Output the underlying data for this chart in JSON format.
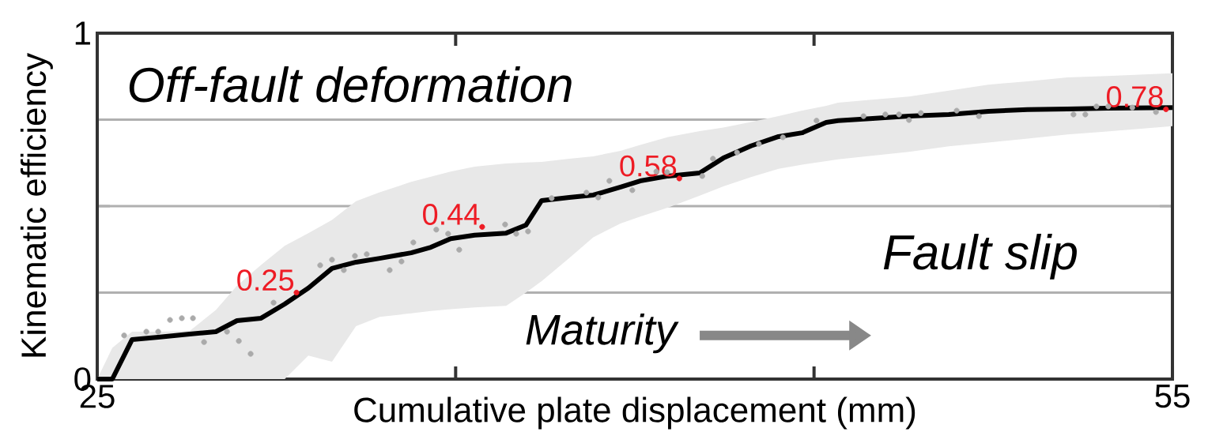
{
  "chart_data": {
    "type": "line",
    "xlabel": "Cumulative plate displacement (mm)",
    "ylabel": "Kinematic efficiency",
    "xlim": [
      25,
      55
    ],
    "ylim": [
      0,
      1
    ],
    "xticks": [
      25,
      {
        "value": 35,
        "label": null
      },
      {
        "value": 45,
        "label": null
      },
      55
    ],
    "yticks": [
      0,
      {
        "value": 0.25,
        "label": null
      },
      {
        "value": 0.5,
        "label": null
      },
      {
        "value": 0.75,
        "label": null
      },
      1
    ],
    "grid": "y",
    "annotations": [
      "Off-fault deformation",
      "Fault slip",
      "Maturity"
    ],
    "series": [
      {
        "type": "scatter",
        "color": "#aaaaaa",
        "marker": "circle",
        "x": [
          25.75,
          26.37,
          26.7,
          27.03,
          27.36,
          27.67,
          27.98,
          28.62,
          28.95,
          29.28,
          29.92,
          31.22,
          31.55,
          31.88,
          32.19,
          32.52,
          33.16,
          33.49,
          33.82,
          34.46,
          34.79,
          35.1,
          36.38,
          36.69,
          37.02,
          37.68,
          38.65,
          38.98,
          39.29,
          39.93,
          40.6,
          40.9,
          41.88,
          42.18,
          42.85,
          43.46,
          44.13,
          45.07,
          46.38,
          46.99,
          47.37,
          47.65,
          47.98,
          48.98,
          49.6,
          52.24,
          52.57,
          52.88,
          53.21,
          53.88,
          54.54
        ],
        "values": [
          0.126,
          0.137,
          0.137,
          0.171,
          0.176,
          0.176,
          0.107,
          0.137,
          0.11,
          0.073,
          0.221,
          0.329,
          0.345,
          0.315,
          0.356,
          0.361,
          0.315,
          0.34,
          0.395,
          0.432,
          0.42,
          0.374,
          0.447,
          0.42,
          0.427,
          0.523,
          0.539,
          0.525,
          0.573,
          0.546,
          0.6,
          0.598,
          0.587,
          0.637,
          0.655,
          0.68,
          0.699,
          0.747,
          0.76,
          0.765,
          0.765,
          0.749,
          0.769,
          0.776,
          0.76,
          0.765,
          0.765,
          0.788,
          0.788,
          0.785,
          0.772
        ]
      },
      {
        "color": "#000000",
        "marker": "none",
        "upper": [
          0,
          0.09,
          0.137,
          0.137,
          0.139,
          0.2,
          0.27,
          0.33,
          0.385,
          0.422,
          0.46,
          0.514,
          0.54,
          0.57,
          0.585,
          0.6,
          0.614,
          0.623,
          0.626,
          0.628,
          0.637,
          0.644,
          0.66,
          0.677,
          0.7,
          0.717,
          0.727,
          0.743,
          0.76,
          0.776,
          0.79,
          0.799,
          0.807,
          0.817,
          0.834,
          0.851,
          0.861,
          0.872,
          0.876,
          0.884
        ],
        "lower": [
          0,
          0,
          0,
          0,
          0,
          0,
          0,
          0,
          0,
          0.068,
          0.05,
          0.153,
          0.18,
          0.19,
          0.197,
          0.202,
          0.207,
          0.212,
          0.25,
          0.283,
          0.35,
          0.41,
          0.45,
          0.47,
          0.496,
          0.53,
          0.557,
          0.584,
          0.608,
          0.62,
          0.63,
          0.635,
          0.645,
          0.657,
          0.673,
          0.684,
          0.695,
          0.707,
          0.716,
          0.731
        ],
        "line_style": "solid",
        "x": [
          25,
          25.42,
          25.97,
          26.7,
          27.58,
          28.31,
          28.9,
          29.57,
          30.23,
          30.89,
          31.55,
          32.22,
          32.88,
          33.76,
          34.31,
          34.86,
          35.53,
          36.41,
          36.96,
          37.4,
          38.17,
          38.84,
          39.6,
          40.15,
          40.93,
          41.81,
          42.47,
          43.24,
          44.01,
          44.67,
          45.34,
          45.67,
          46.55,
          47.65,
          48.76,
          49.86,
          50.96,
          52.07,
          53.17,
          55
        ],
        "values": [
          0,
          0,
          0.114,
          0.121,
          0.13,
          0.137,
          0.169,
          0.176,
          0.217,
          0.263,
          0.32,
          0.338,
          0.349,
          0.365,
          0.381,
          0.406,
          0.416,
          0.422,
          0.445,
          0.516,
          0.525,
          0.532,
          0.555,
          0.573,
          0.587,
          0.596,
          0.639,
          0.674,
          0.701,
          0.712,
          0.742,
          0.747,
          0.753,
          0.76,
          0.765,
          0.774,
          0.779,
          0.781,
          0.783,
          0.785
        ]
      },
      {
        "type": "scatter",
        "color": "#ee1c25",
        "marker": "circle",
        "x": [
          30.56,
          35.74,
          41.24,
          54.82
        ],
        "values": [
          0.25,
          0.44,
          0.58,
          0.78
        ],
        "value_labels": [
          "0.25",
          "0.44",
          "0.58",
          "0.78"
        ]
      }
    ]
  }
}
